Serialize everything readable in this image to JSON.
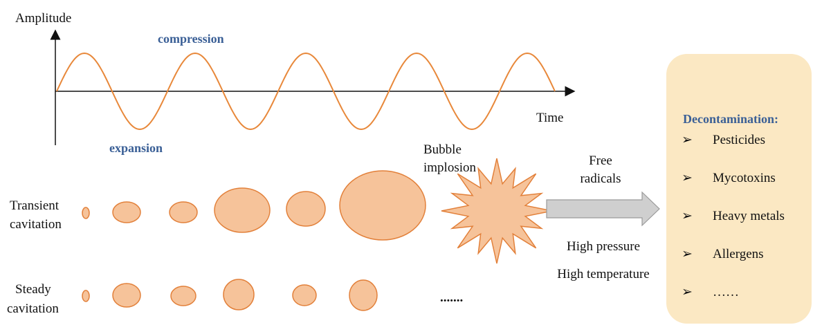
{
  "wave": {
    "y_axis_label": "Amplitude",
    "x_axis_label": "Time",
    "compression": "compression",
    "expansion": "expansion"
  },
  "bubble_implosion": [
    "Bubble",
    "implosion"
  ],
  "free_radicals": [
    "Free",
    "radicals"
  ],
  "transient_cavitation": [
    "Transient",
    "cavitation"
  ],
  "steady_cavitation": [
    "Steady",
    "cavitation"
  ],
  "continuation": ".......",
  "conditions": [
    "High pressure",
    "High temperature"
  ],
  "decontamination": {
    "title": "Decontamination:",
    "bullet": "➢",
    "items": [
      "Pesticides",
      "Mycotoxins",
      "Heavy metals",
      "Allergens",
      "……"
    ]
  }
}
